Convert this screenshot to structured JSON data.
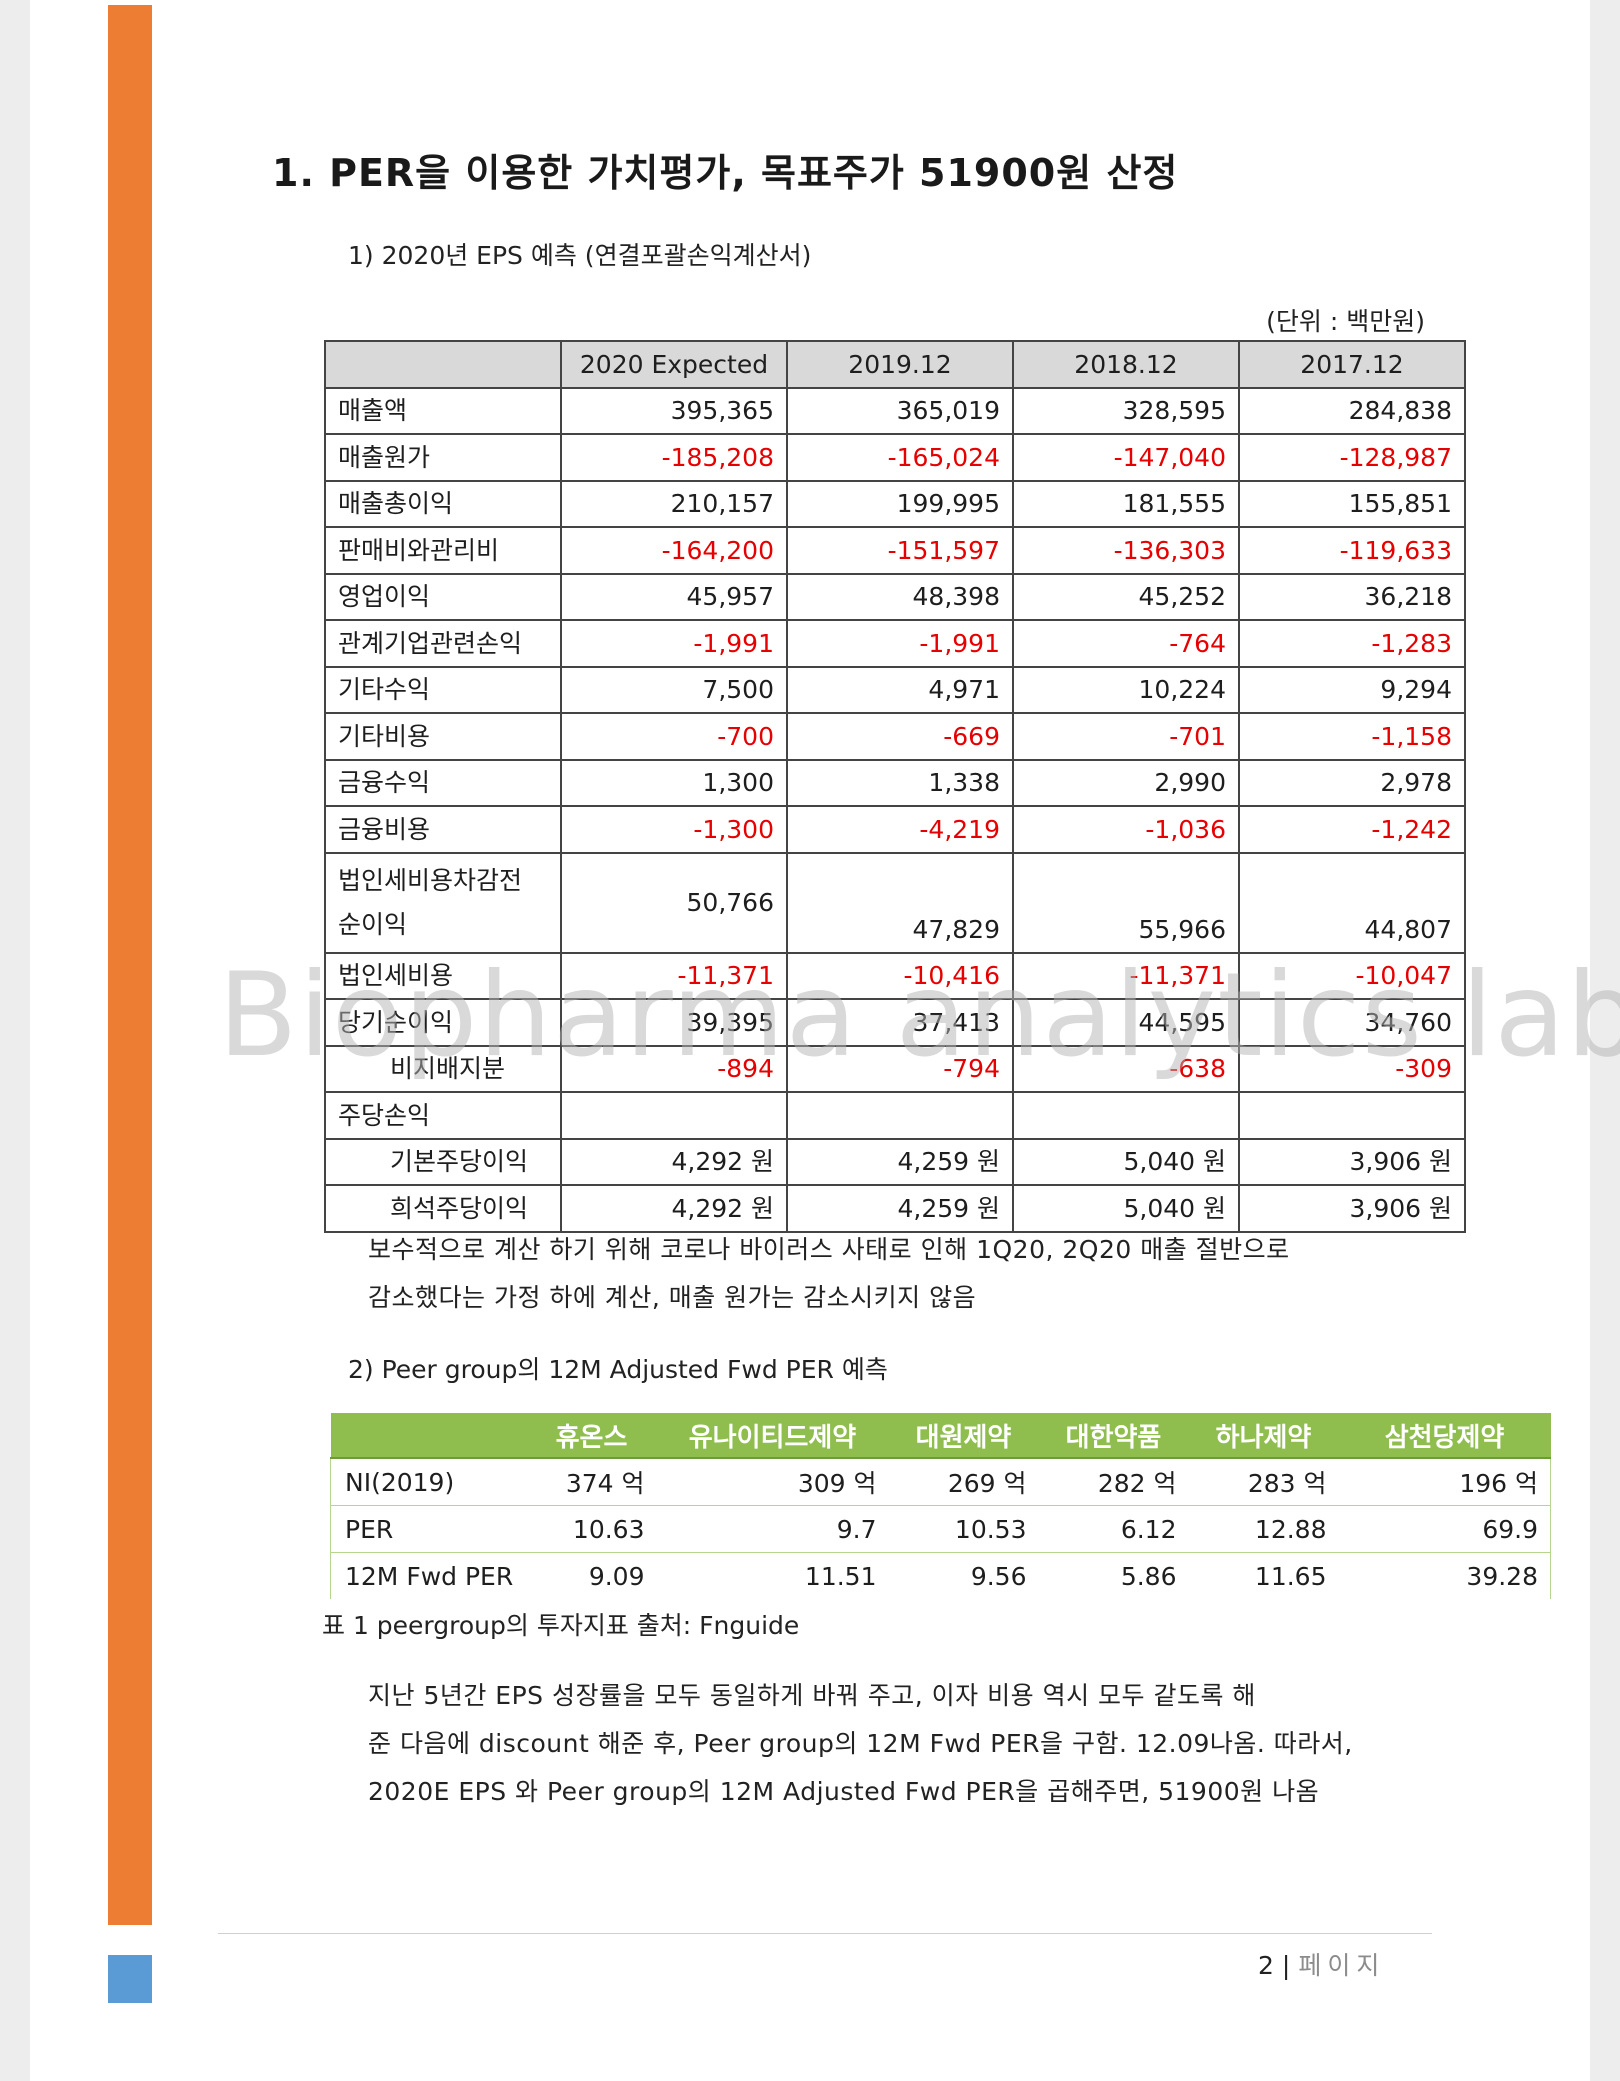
{
  "heading": "1. PER을 이용한 가치평가, 목표주가 51900원 산정",
  "section1": {
    "title": "1)   2020년 EPS 예측 (연결포괄손익계산서)",
    "unit": "(단위 : 백만원)"
  },
  "income_table": {
    "headers": [
      "",
      "2020 Expected",
      "2019.12",
      "2018.12",
      "2017.12"
    ],
    "rows": [
      {
        "label": "매출액",
        "values": [
          "395,365",
          "365,019",
          "328,595",
          "284,838"
        ]
      },
      {
        "label": "매출원가",
        "values": [
          "-185,208",
          "-165,024",
          "-147,040",
          "-128,987"
        ]
      },
      {
        "label": "매출총이익",
        "values": [
          "210,157",
          "199,995",
          "181,555",
          "155,851"
        ]
      },
      {
        "label": "판매비와관리비",
        "values": [
          "-164,200",
          "-151,597",
          "-136,303",
          "-119,633"
        ]
      },
      {
        "label": "영업이익",
        "values": [
          "45,957",
          "48,398",
          "45,252",
          "36,218"
        ]
      },
      {
        "label": "관계기업관련손익",
        "values": [
          "-1,991",
          "-1,991",
          "-764",
          "-1,283"
        ]
      },
      {
        "label": "기타수익",
        "values": [
          "7,500",
          "4,971",
          "10,224",
          "9,294"
        ]
      },
      {
        "label": "기타비용",
        "values": [
          "-700",
          "-669",
          "-701",
          "-1,158"
        ]
      },
      {
        "label": "금융수익",
        "values": [
          "1,300",
          "1,338",
          "2,990",
          "2,978"
        ]
      },
      {
        "label": "금융비용",
        "values": [
          "-1,300",
          "-4,219",
          "-1,036",
          "-1,242"
        ]
      },
      {
        "label1": "법인세비용차감전",
        "label2": "순이익",
        "values": [
          "50,766",
          "47,829",
          "55,966",
          "44,807"
        ]
      },
      {
        "label": "법인세비용",
        "values": [
          "-11,371",
          "-10,416",
          "-11,371",
          "-10,047"
        ]
      },
      {
        "label": "당기순이익",
        "values": [
          "39,395",
          "37,413",
          "44,595",
          "34,760"
        ]
      },
      {
        "label": "비지배지분",
        "values": [
          "-894",
          "-794",
          "-638",
          "-309"
        ]
      },
      {
        "label": "주당손익",
        "values": [
          "",
          "",
          "",
          ""
        ]
      },
      {
        "label": "기본주당이익",
        "values": [
          "4,292 원",
          "4,259 원",
          "5,040 원",
          "3,906 원"
        ]
      },
      {
        "label": "희석주당이익",
        "values": [
          "4,292 원",
          "4,259 원",
          "5,040 원",
          "3,906 원"
        ]
      }
    ]
  },
  "note1": {
    "line1": "보수적으로 계산 하기 위해 코로나 바이러스 사태로 인해 1Q20, 2Q20 매출 절반으로",
    "line2": "감소했다는 가정 하에 계산, 매출 원가는 감소시키지 않음"
  },
  "section2": {
    "title": "2)   Peer group의 12M Adjusted Fwd PER 예측"
  },
  "peer_table": {
    "headers": [
      "",
      "휴온스",
      "유나이티드제약",
      "대원제약",
      "대한약품",
      "하나제약",
      "삼천당제약"
    ],
    "rows": [
      {
        "label": "NI(2019)",
        "values": [
          "374 억",
          "309 억",
          "269 억",
          "282 억",
          "283 억",
          "196 억"
        ]
      },
      {
        "label": "PER",
        "values": [
          "10.63",
          "9.7",
          "10.53",
          "6.12",
          "12.88",
          "69.9"
        ]
      },
      {
        "label": "12M Fwd PER",
        "values": [
          "9.09",
          "11.51",
          "9.56",
          "5.86",
          "11.65",
          "39.28"
        ]
      }
    ]
  },
  "caption": "표 1 peergroup의 투자지표 출처: Fnguide",
  "paragraph": {
    "line1": "지난 5년간 EPS 성장률을 모두 동일하게 바꿔 주고, 이자 비용 역시 모두 같도록 해",
    "line2": "준 다음에 discount 해준 후, Peer group의 12M Fwd PER을 구함. 12.09나옴. 따라서,",
    "line3": "2020E EPS 와 Peer group의 12M Adjusted Fwd PER을 곱해주면, 51900원 나옴"
  },
  "footer": {
    "page_number": "2",
    "separator": "|",
    "page_label": "페이지"
  },
  "watermark": "Biopharma analytics lab",
  "colors": {
    "accent_orange": "#ee7d34",
    "accent_blue": "#5b9bd5",
    "negative": "#e60000",
    "peer_header": "#8fbe4e"
  }
}
